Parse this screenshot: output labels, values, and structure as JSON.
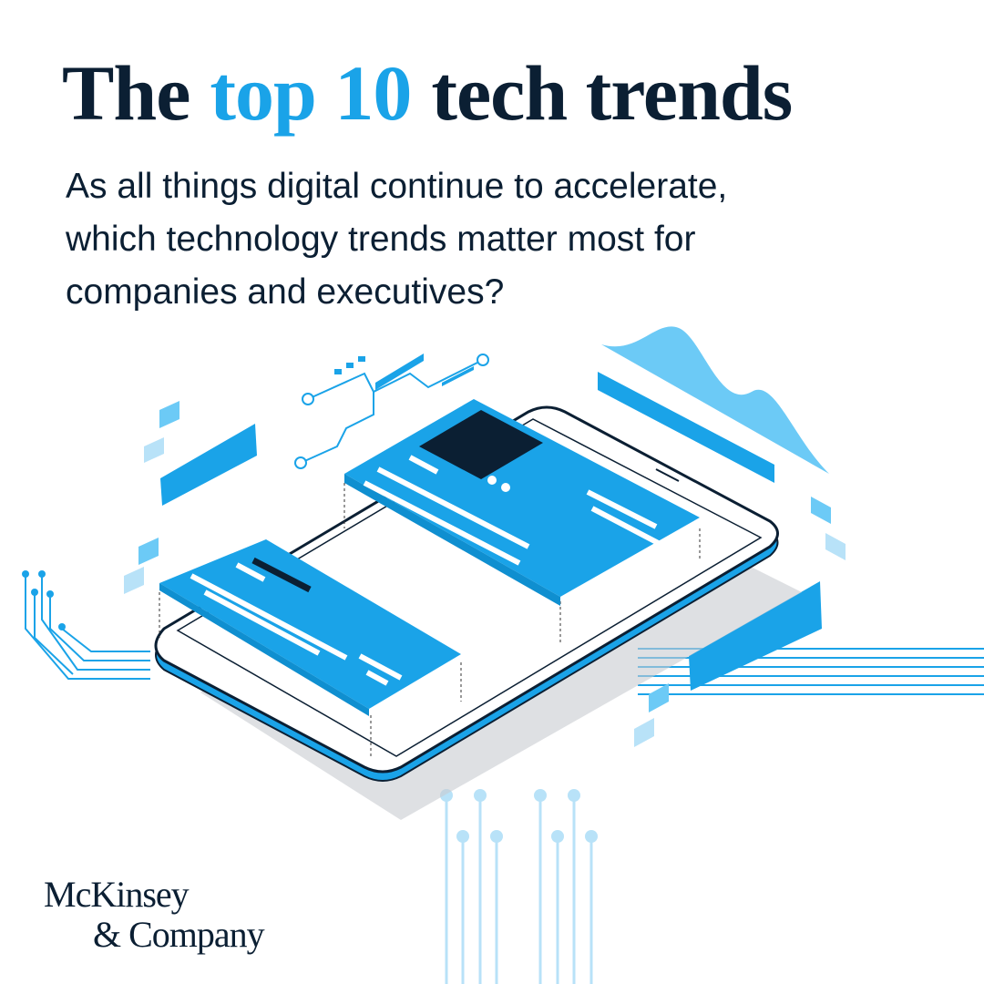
{
  "title": {
    "start": "The",
    "highlight": "top 10",
    "end": "tech trends"
  },
  "subtitle": [
    "As all things digital continue to accelerate,",
    "which technology trends matter most for",
    "companies and executives?"
  ],
  "logo": [
    "McKinsey",
    "& Company"
  ]
}
